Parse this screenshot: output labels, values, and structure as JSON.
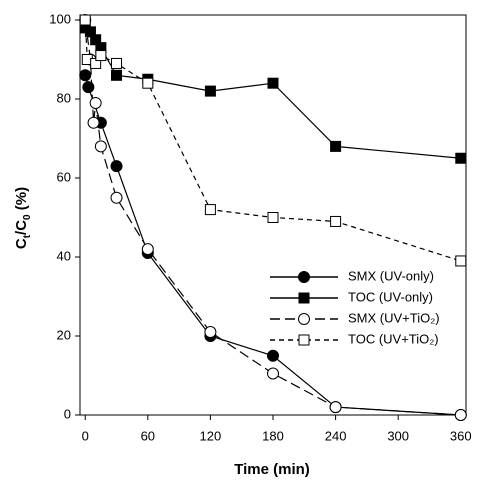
{
  "chart_data": {
    "type": "line",
    "x_label": "Time (min)",
    "y_label_parts": [
      "C",
      "t",
      "/C",
      "0",
      " (%)"
    ],
    "xlim": [
      -5,
      365
    ],
    "xticks": [
      0,
      60,
      120,
      180,
      240,
      300,
      360
    ],
    "ylim": [
      0,
      100
    ],
    "yticks": [
      0,
      20,
      40,
      60,
      80,
      100
    ],
    "series": [
      {
        "name": "SMX (UV-only)",
        "color": "#000000",
        "marker": "circle",
        "filled": true,
        "dash": "none",
        "x": [
          0,
          3,
          15,
          30,
          60,
          120,
          180,
          240,
          360
        ],
        "values": [
          86,
          83,
          74,
          63,
          41,
          20,
          15,
          2,
          0
        ]
      },
      {
        "name": "TOC (UV-only)",
        "color": "#000000",
        "marker": "square",
        "filled": true,
        "dash": "none",
        "x": [
          0,
          5,
          10,
          15,
          30,
          60,
          120,
          180,
          240,
          360
        ],
        "values": [
          98,
          97,
          95,
          93,
          86,
          85,
          82,
          84,
          68,
          65
        ]
      },
      {
        "name": "SMX (UV+TiO₂)",
        "color": "#000000",
        "marker": "circle",
        "filled": false,
        "dash": "10,5",
        "x": [
          0,
          5,
          8,
          10,
          15,
          30,
          60,
          120,
          180,
          240,
          360
        ],
        "values": [
          100,
          90,
          74,
          79,
          68,
          55,
          42,
          21,
          10.5,
          2,
          0
        ]
      },
      {
        "name": "TOC (UV+TiO₂)",
        "color": "#000000",
        "marker": "square",
        "filled": false,
        "dash": "5,4",
        "x": [
          0,
          2,
          10,
          15,
          30,
          60,
          120,
          180,
          240,
          360
        ],
        "values": [
          100,
          90,
          89,
          91,
          89,
          84,
          52,
          50,
          49,
          39
        ]
      }
    ]
  }
}
